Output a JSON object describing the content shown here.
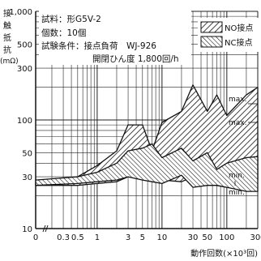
{
  "chart_data": {
    "type": "area",
    "y_axis_label_vertical": [
      "接",
      "触",
      "抵",
      "抗"
    ],
    "y_axis_unit": "(mΩ)",
    "x_axis_label": "動作回数(×10³回)",
    "x_scale": "log",
    "y_scale": "log",
    "xlim_labels": [
      "0",
      "300"
    ],
    "ylim": [
      10,
      1000
    ],
    "x_ticks": [
      {
        "value": 0.3,
        "label": "0.3"
      },
      {
        "value": 0.5,
        "label": "0.5"
      },
      {
        "value": 1,
        "label": "1"
      },
      {
        "value": 3,
        "label": "3"
      },
      {
        "value": 5,
        "label": "5"
      },
      {
        "value": 10,
        "label": "10"
      },
      {
        "value": 30,
        "label": "30"
      },
      {
        "value": 50,
        "label": "50"
      },
      {
        "value": 100,
        "label": "100"
      },
      {
        "value": 300,
        "label": "300"
      }
    ],
    "y_ticks": [
      {
        "value": 1000,
        "label": "1,000"
      },
      {
        "value": 500,
        "label": "500"
      },
      {
        "value": 300,
        "label": "300"
      },
      {
        "value": 100,
        "label": "100"
      },
      {
        "value": 50,
        "label": "50"
      },
      {
        "value": 30,
        "label": "30"
      },
      {
        "value": 10,
        "label": "10"
      }
    ],
    "info_lines": [
      "試料：形G5V-2",
      "個数：10個",
      "試験条件：接点負荷　WJ-926",
      "開閉ひん度 1,800回/h"
    ],
    "series": [
      {
        "name": "NO接点",
        "x": [
          0,
          0.5,
          1,
          2,
          3,
          5,
          7,
          10,
          20,
          30,
          50,
          70,
          100,
          200,
          300
        ],
        "max": [
          26,
          30,
          38,
          52,
          90,
          90,
          52,
          95,
          120,
          210,
          120,
          170,
          110,
          170,
          200
        ],
        "min": [
          25,
          25,
          26,
          27,
          30,
          32,
          30,
          28,
          27,
          30,
          26,
          25,
          24,
          29,
          28
        ]
      },
      {
        "name": "NC接点",
        "x": [
          0,
          0.5,
          1,
          2,
          3,
          5,
          7,
          10,
          20,
          30,
          50,
          70,
          100,
          200,
          300
        ],
        "max": [
          28,
          30,
          33,
          40,
          52,
          55,
          60,
          45,
          55,
          42,
          50,
          35,
          40,
          45,
          46
        ],
        "min": [
          25,
          26,
          27,
          28,
          30,
          28,
          27,
          26,
          31,
          24,
          25,
          25,
          24,
          22,
          22
        ]
      }
    ],
    "annotations": [
      "max.",
      "max.",
      "min.",
      "min."
    ],
    "grid": true,
    "legend_position": "top-right"
  }
}
